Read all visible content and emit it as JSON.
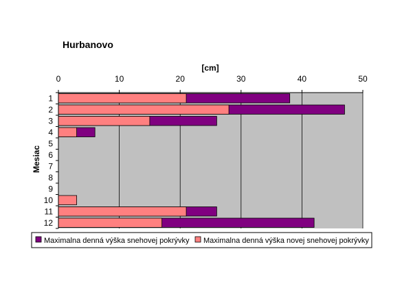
{
  "chart_data": {
    "type": "bar",
    "orientation": "horizontal",
    "stacking": "overlay",
    "title": "Hurbanovo",
    "xlabel": "[cm]",
    "ylabel": "Mesiac",
    "xlim": [
      0,
      50
    ],
    "x_ticks": [
      0,
      10,
      20,
      30,
      40,
      50
    ],
    "x_axis_position": "top",
    "categories": [
      "1",
      "2",
      "3",
      "4",
      "5",
      "6",
      "7",
      "8",
      "9",
      "10",
      "11",
      "12"
    ],
    "grid": true,
    "legend_position": "bottom",
    "series": [
      {
        "name": "Maximalna denná výška snehovej pokrývky",
        "color": "#800080",
        "values": [
          38,
          47,
          26,
          6,
          0,
          0,
          0,
          0,
          0,
          0,
          26,
          42
        ]
      },
      {
        "name": "Maximalna denná výška novej snehovej pokrývky",
        "color": "#FF8080",
        "values": [
          21,
          28,
          15,
          3,
          0,
          0,
          0,
          0,
          0,
          3,
          21,
          17
        ]
      }
    ],
    "plot_background": "#C0C0C0"
  }
}
